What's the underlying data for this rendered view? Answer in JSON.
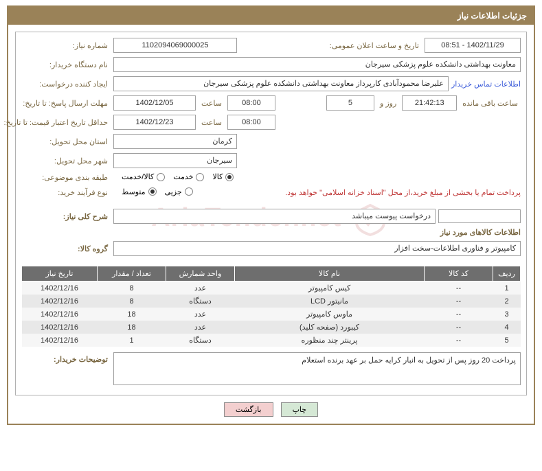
{
  "header": {
    "title": "جزئیات اطلاعات نیاز"
  },
  "fields": {
    "need_no_label": "شماره نیاز:",
    "need_no": "1102094069000025",
    "announce_label": "تاریخ و ساعت اعلان عمومی:",
    "announce_value": "1402/11/29 - 08:51",
    "buyer_org_label": "نام دستگاه خریدار:",
    "buyer_org": "معاونت بهداشتی دانشکده علوم پزشکی سیرجان",
    "creator_label": "ایجاد کننده درخواست:",
    "creator": "علیرضا  محمودآبادی کارپرداز معاونت بهداشتی دانشکده علوم پزشکی سیرجان",
    "contact_link": "اطلاعات تماس خریدار",
    "deadline_label": "مهلت ارسال پاسخ: تا تاریخ:",
    "deadline_date": "1402/12/05",
    "hour_label": "ساعت",
    "deadline_time": "08:00",
    "days_count": "5",
    "day_and_label": "روز و",
    "countdown": "21:42:13",
    "remaining_label": "ساعت باقی مانده",
    "price_validity_label": "حداقل تاریخ اعتبار قیمت: تا تاریخ:",
    "price_validity_date": "1402/12/23",
    "price_validity_time": "08:00",
    "province_label": "استان محل تحویل:",
    "province": "کرمان",
    "city_label": "شهر محل تحویل:",
    "city": "سیرجان",
    "category_label": "طبقه بندی موضوعی:",
    "purchase_type_label": "نوع فرآیند خرید:",
    "payment_note": "پرداخت تمام یا بخشی از مبلغ خرید،از محل \"اسناد خزانه اسلامی\" خواهد بود.",
    "desc_label": "شرح کلی نیاز:",
    "desc_value": "درخواست پیوست میباشد",
    "goods_section": "اطلاعات کالاهای مورد نیاز",
    "group_label": "گروه کالا:",
    "group_value": "کامپیوتر و فناوری اطلاعات-سخت افزار",
    "buyer_notes_label": "توضیحات خریدار:",
    "buyer_notes": "پرداخت 20 روز پس از تحویل به انبار کرایه حمل بر عهد برنده استعلام"
  },
  "radios": {
    "category": [
      {
        "label": "کالا",
        "checked": true
      },
      {
        "label": "خدمت",
        "checked": false
      },
      {
        "label": "کالا/خدمت",
        "checked": false
      }
    ],
    "purchase": [
      {
        "label": "جزیی",
        "checked": false
      },
      {
        "label": "متوسط",
        "checked": true
      }
    ]
  },
  "table": {
    "columns": [
      "ردیف",
      "کد کالا",
      "نام کالا",
      "واحد شمارش",
      "تعداد / مقدار",
      "تاریخ نیاز"
    ],
    "col_widths": [
      "40px",
      "100px",
      "auto",
      "100px",
      "100px",
      "110px"
    ],
    "rows": [
      [
        "1",
        "--",
        "کیس کامپیوتر",
        "عدد",
        "8",
        "1402/12/16"
      ],
      [
        "2",
        "--",
        "مانیتور LCD",
        "دستگاه",
        "8",
        "1402/12/16"
      ],
      [
        "3",
        "--",
        "ماوس کامپیوتر",
        "عدد",
        "18",
        "1402/12/16"
      ],
      [
        "4",
        "--",
        "کیبورد (صفحه کلید)",
        "عدد",
        "18",
        "1402/12/16"
      ],
      [
        "5",
        "--",
        "پرینتر چند منظوره",
        "دستگاه",
        "1",
        "1402/12/16"
      ]
    ]
  },
  "buttons": {
    "print": "چاپ",
    "back": "بازگشت"
  },
  "colors": {
    "brand": "#9a8258",
    "label": "#7a6843",
    "header_th": "#6e6e6e",
    "link": "#3b5bd9",
    "note": "#c03838"
  },
  "watermark": "AriaTender.net"
}
